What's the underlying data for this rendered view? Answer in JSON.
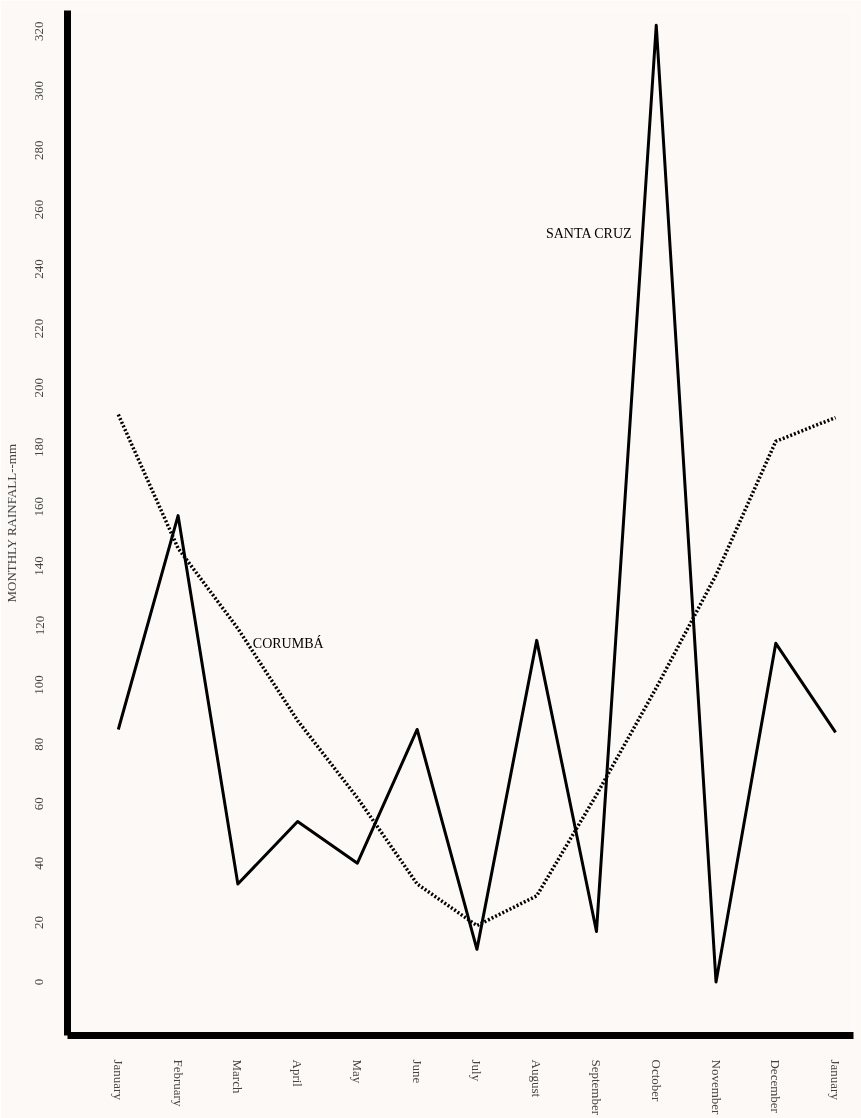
{
  "chart_data": {
    "type": "line",
    "ylabel": "MONTHLY RAINFALL--mm",
    "categories": [
      "January",
      "February",
      "March",
      "April",
      "May",
      "June",
      "July",
      "August",
      "September",
      "October",
      "November",
      "December",
      "January"
    ],
    "series": [
      {
        "name": "SANTA CRUZ",
        "color": "#000000",
        "line_style": "solid",
        "values": [
          85,
          157,
          33,
          54,
          40,
          85,
          11,
          115,
          17,
          322,
          0,
          114,
          84
        ]
      },
      {
        "name": "CORUMBÁ",
        "color": "#000000",
        "line_style": "dotted",
        "values": [
          191,
          146,
          119,
          88,
          62,
          33,
          19,
          29,
          63,
          99,
          137,
          182,
          190
        ]
      }
    ],
    "ylim": [
      -18,
      327
    ],
    "yticks": [
      0,
      20,
      40,
      60,
      80,
      100,
      120,
      140,
      160,
      180,
      200,
      220,
      240,
      260,
      280,
      300,
      320
    ],
    "grid": false
  }
}
